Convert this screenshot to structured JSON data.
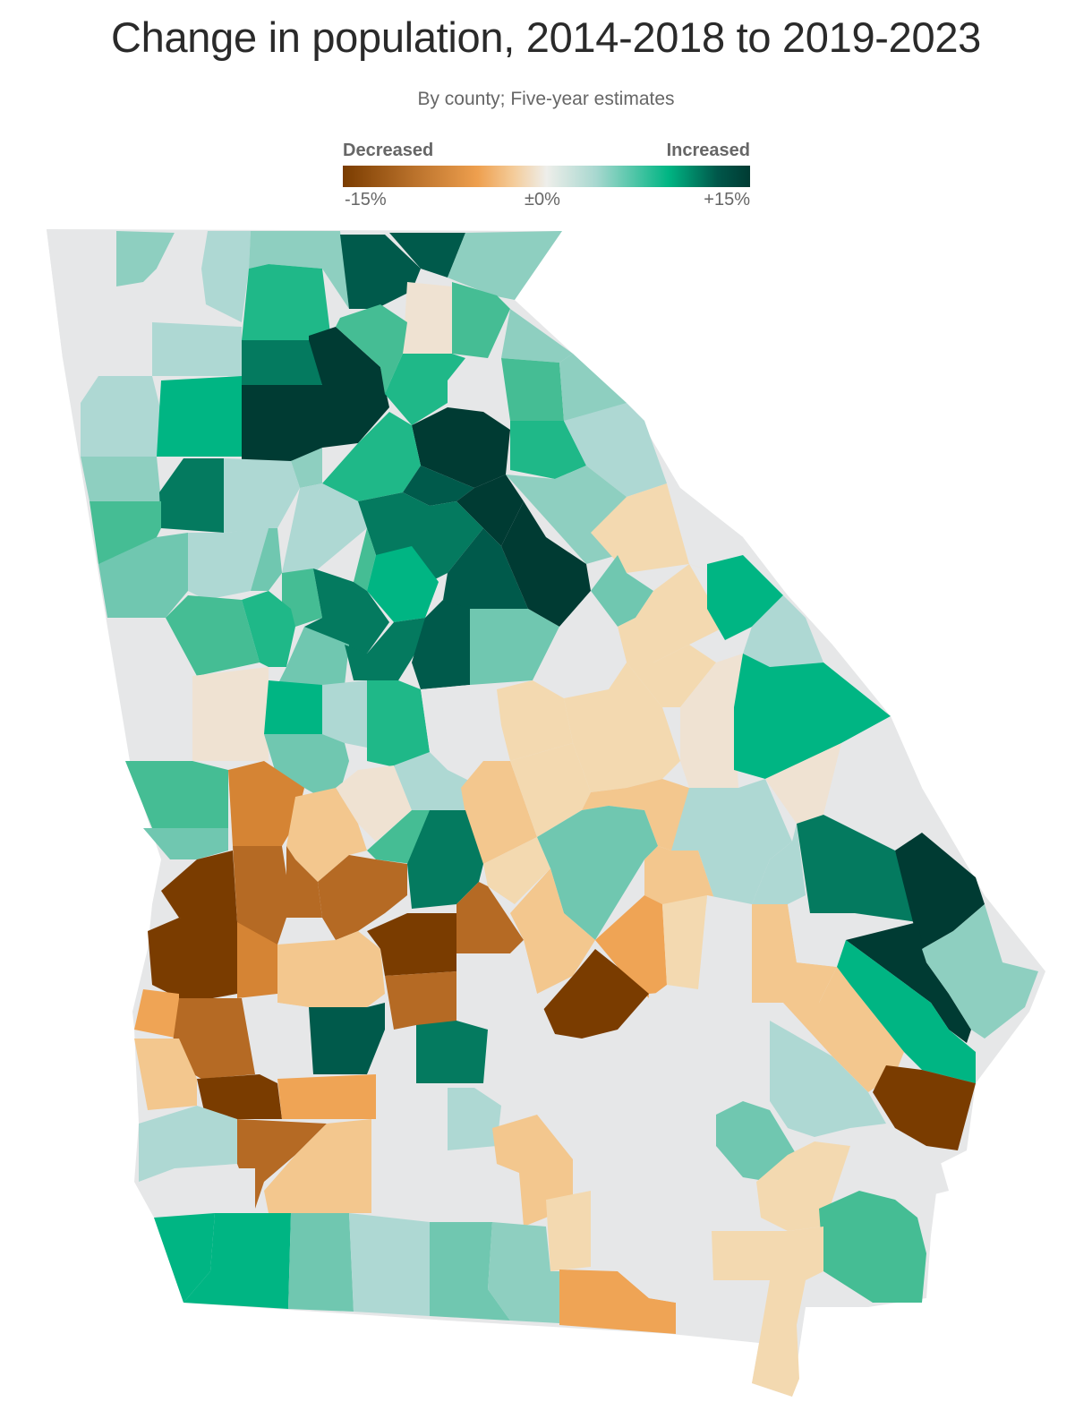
{
  "title": "Change in population, 2014-2018 to 2019-2023",
  "subtitle": "By county; Five-year estimates",
  "legend": {
    "low_label": "Decreased",
    "high_label": "Increased",
    "tick_low": "-15%",
    "tick_mid": "±0%",
    "tick_high": "+15%"
  },
  "colors": {
    "dark_brown": "#7a3c00",
    "brown": "#b56a24",
    "orange_brown": "#d58434",
    "orange": "#efa455",
    "light_orange": "#f3c78e",
    "tan": "#f3d9b0",
    "beige": "#efe2d2",
    "neutral": "#e6e7e8",
    "pale_teal": "#aed8d3",
    "light_teal": "#8ecfc0",
    "teal": "#70c7b0",
    "mid_green": "#45bd94",
    "green": "#1fb888",
    "bright_green": "#00b583",
    "dark_green": "#047a5f",
    "darker_green": "#005a4b",
    "darkest_green": "#003b33"
  }
}
